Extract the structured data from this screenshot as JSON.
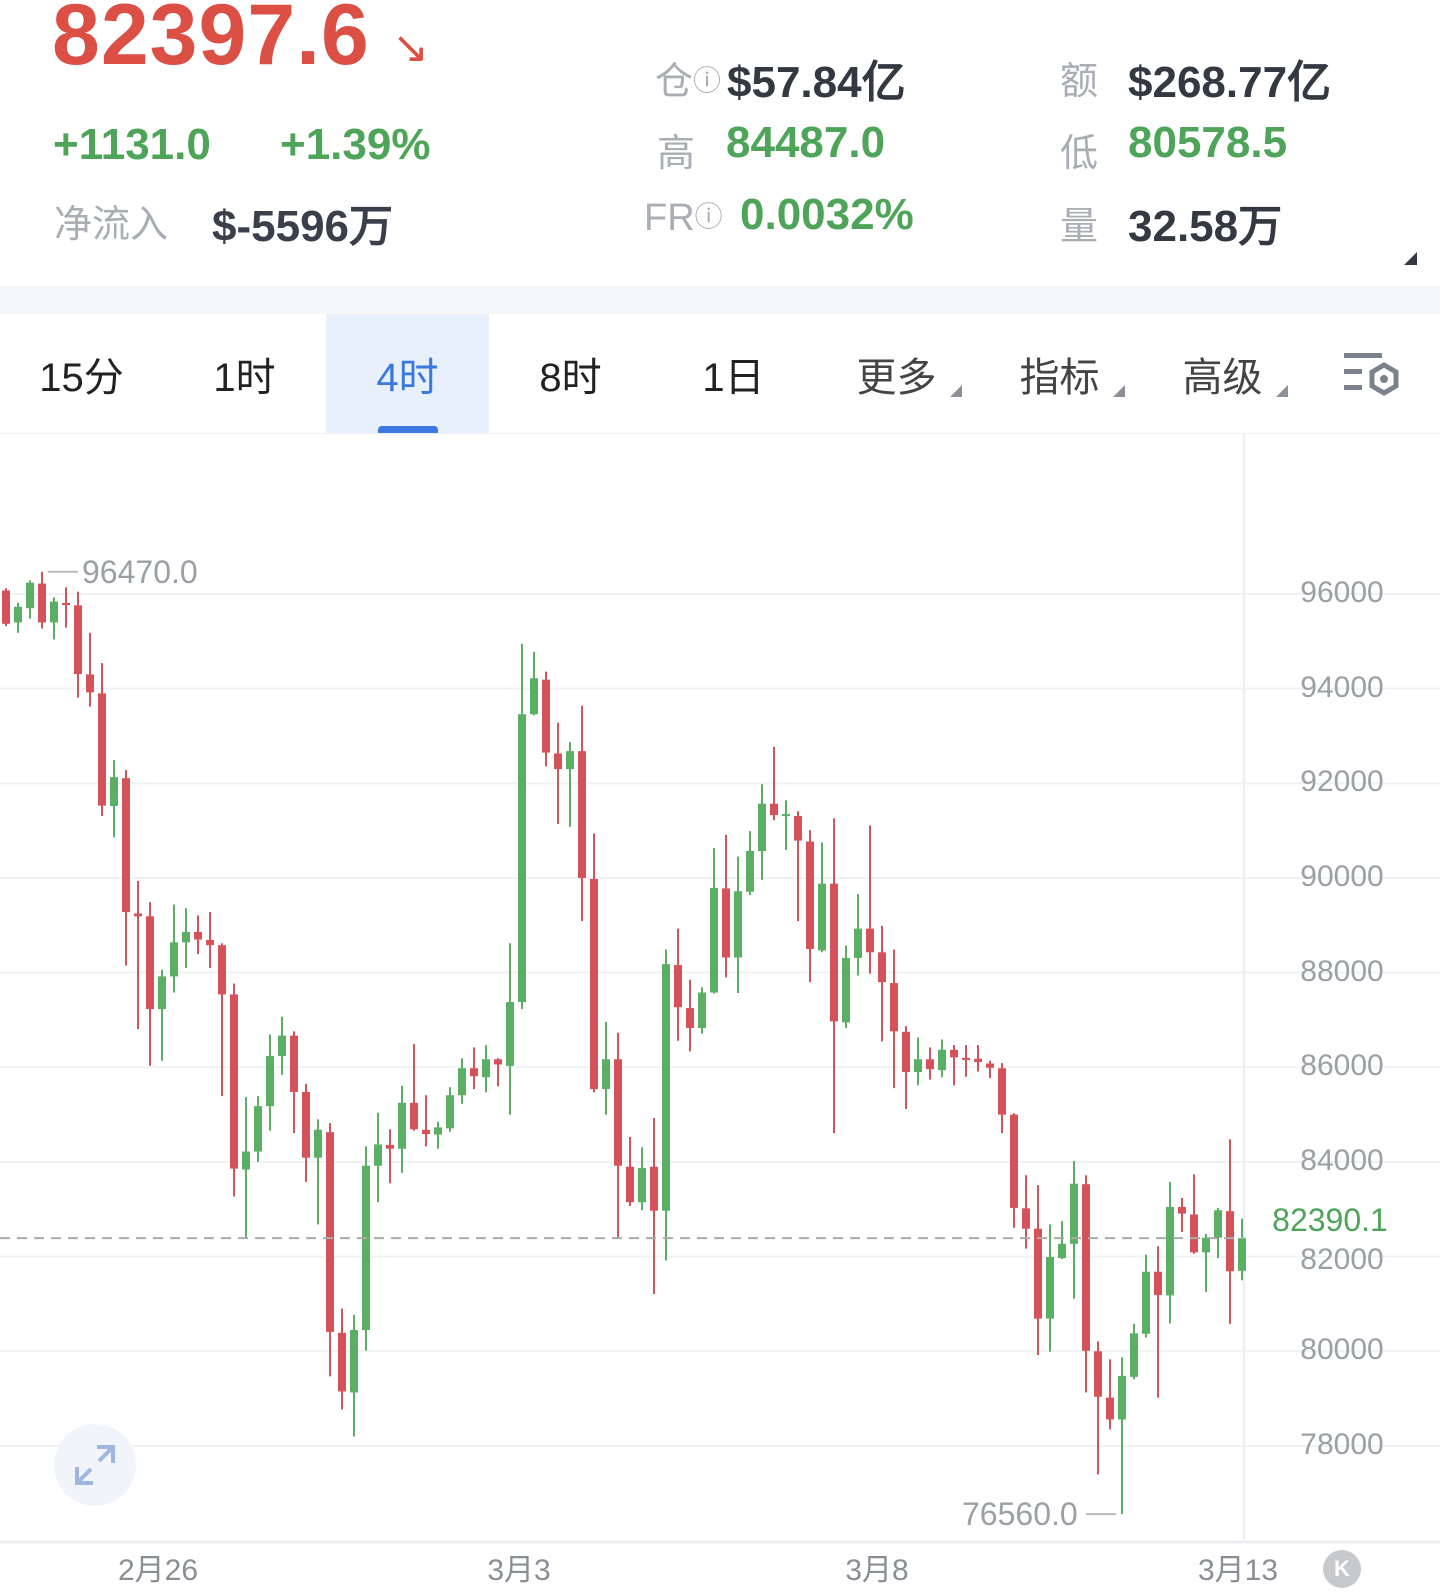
{
  "ticker": {
    "last_price": "82397.6",
    "trend_icon": "arrow-down-right-icon",
    "change": "+1131.0",
    "change_pct": "+1.39%",
    "net_inflow_label": "净流入",
    "net_inflow_value": "$-5596万"
  },
  "stats": {
    "open_interest_label": "仓",
    "open_interest_value": "$57.84亿",
    "turnover_label": "额",
    "turnover_value": "$268.77亿",
    "high_label": "高",
    "high_value": "84487.0",
    "low_label": "低",
    "low_value": "80578.5",
    "fr_label": "FR",
    "fr_value": "0.0032%",
    "volume_label": "量",
    "volume_value": "32.58万"
  },
  "tabs": [
    {
      "label": "15分",
      "active": false
    },
    {
      "label": "1时",
      "active": false
    },
    {
      "label": "4时",
      "active": true
    },
    {
      "label": "8时",
      "active": false
    },
    {
      "label": "1日",
      "active": false
    },
    {
      "label": "更多",
      "dropdown": true
    },
    {
      "label": "指标",
      "dropdown": true
    },
    {
      "label": "高级",
      "dropdown": true
    }
  ],
  "colors": {
    "up": "#5aaf64",
    "down": "#d4525a",
    "accent": "#3b78e0",
    "price_down": "#dc4f45"
  },
  "chart_data": {
    "type": "candlestick",
    "interval": "4时",
    "ylim": [
      76000,
      97500
    ],
    "yticks": [
      96000,
      94000,
      92000,
      90000,
      88000,
      86000,
      84000,
      82000,
      80000,
      78000
    ],
    "ytick_labels": [
      "96000",
      "94000",
      "92000",
      "90000",
      "88000",
      "86000",
      "84000",
      "82000",
      "80000",
      "78000"
    ],
    "xtick_labels": [
      "2月26",
      "3月3",
      "3月8",
      "3月13"
    ],
    "grid": true,
    "high_marker": "96470.0",
    "low_marker": "76560.0",
    "last_price_line": "82390.1",
    "ohlc_fields": [
      "open",
      "high",
      "low",
      "close"
    ],
    "candles": [
      [
        96075,
        96120,
        95320,
        95370
      ],
      [
        95400,
        95820,
        95180,
        95730
      ],
      [
        95700,
        96290,
        95480,
        96240
      ],
      [
        96220,
        96470,
        95270,
        95400
      ],
      [
        95400,
        95930,
        95040,
        95840
      ],
      [
        95810,
        96140,
        95290,
        95770
      ],
      [
        95760,
        96050,
        93810,
        94310
      ],
      [
        94300,
        95180,
        93620,
        93920
      ],
      [
        93900,
        94540,
        91310,
        91530
      ],
      [
        91520,
        92490,
        90860,
        92130
      ],
      [
        92110,
        92280,
        88150,
        89280
      ],
      [
        89250,
        89940,
        86810,
        89190
      ],
      [
        89190,
        89490,
        86030,
        87230
      ],
      [
        87230,
        88060,
        86140,
        87920
      ],
      [
        87920,
        89440,
        87580,
        88640
      ],
      [
        88640,
        89360,
        88100,
        88860
      ],
      [
        88860,
        89210,
        88390,
        88700
      ],
      [
        88690,
        89280,
        88100,
        88580
      ],
      [
        88580,
        88620,
        85390,
        87540
      ],
      [
        87540,
        87770,
        83270,
        83860
      ],
      [
        83840,
        85370,
        82400,
        84220
      ],
      [
        84220,
        85390,
        84000,
        85180
      ],
      [
        85180,
        86690,
        84660,
        86240
      ],
      [
        86240,
        87070,
        85840,
        86670
      ],
      [
        86670,
        86760,
        84610,
        85480
      ],
      [
        85480,
        85650,
        83580,
        84090
      ],
      [
        84090,
        84900,
        82680,
        84680
      ],
      [
        84630,
        84820,
        79470,
        80410
      ],
      [
        80390,
        80900,
        78770,
        79150
      ],
      [
        79130,
        80770,
        78200,
        80450
      ],
      [
        80450,
        84330,
        80010,
        83920
      ],
      [
        83920,
        85040,
        83150,
        84370
      ],
      [
        84360,
        84690,
        83550,
        84280
      ],
      [
        84280,
        85610,
        83770,
        85250
      ],
      [
        85250,
        86490,
        84660,
        84690
      ],
      [
        84680,
        85410,
        84330,
        84590
      ],
      [
        84580,
        84850,
        84280,
        84730
      ],
      [
        84710,
        85580,
        84640,
        85410
      ],
      [
        85410,
        86190,
        85230,
        85980
      ],
      [
        85980,
        86420,
        85540,
        85810
      ],
      [
        85790,
        86470,
        85470,
        86170
      ],
      [
        86170,
        86190,
        85600,
        86060
      ],
      [
        86030,
        88620,
        85000,
        87380
      ],
      [
        87380,
        94950,
        87230,
        93460
      ],
      [
        93460,
        94780,
        93440,
        94220
      ],
      [
        94190,
        94360,
        92360,
        92650
      ],
      [
        92630,
        93280,
        91140,
        92300
      ],
      [
        92300,
        92870,
        91080,
        92680
      ],
      [
        92680,
        93640,
        89090,
        90000
      ],
      [
        89980,
        90940,
        85470,
        85540
      ],
      [
        85540,
        86960,
        85000,
        86170
      ],
      [
        86170,
        86730,
        82390,
        83920
      ],
      [
        83900,
        84530,
        83070,
        83150
      ],
      [
        83150,
        84310,
        82980,
        83870
      ],
      [
        83900,
        84930,
        81210,
        82970
      ],
      [
        82970,
        88490,
        81920,
        88180
      ],
      [
        88160,
        88930,
        86560,
        87270
      ],
      [
        87250,
        87850,
        86340,
        86830
      ],
      [
        86830,
        87690,
        86710,
        87580
      ],
      [
        87580,
        90630,
        87560,
        89790
      ],
      [
        89780,
        90910,
        87900,
        88320
      ],
      [
        88320,
        90450,
        87570,
        89720
      ],
      [
        89710,
        90990,
        89640,
        90570
      ],
      [
        90570,
        91980,
        89960,
        91570
      ],
      [
        91570,
        92770,
        91220,
        91330
      ],
      [
        91330,
        91640,
        90590,
        91350
      ],
      [
        91310,
        91410,
        89090,
        90790
      ],
      [
        90770,
        91010,
        87800,
        88500
      ],
      [
        88470,
        90750,
        88430,
        89880
      ],
      [
        89880,
        91260,
        84610,
        86970
      ],
      [
        86950,
        88570,
        86830,
        88310
      ],
      [
        88310,
        89660,
        87940,
        88930
      ],
      [
        88930,
        91110,
        87980,
        88430
      ],
      [
        88430,
        88990,
        86550,
        87800
      ],
      [
        87780,
        88490,
        85560,
        86760
      ],
      [
        86750,
        86870,
        85120,
        85900
      ],
      [
        85900,
        86630,
        85620,
        86170
      ],
      [
        86170,
        86420,
        85740,
        85960
      ],
      [
        85940,
        86590,
        85790,
        86370
      ],
      [
        86370,
        86470,
        85620,
        86210
      ],
      [
        86200,
        86470,
        85800,
        86190
      ],
      [
        86180,
        86470,
        85910,
        86110
      ],
      [
        86080,
        86140,
        85770,
        85990
      ],
      [
        85980,
        86090,
        84610,
        85000
      ],
      [
        85000,
        85030,
        82610,
        83030
      ],
      [
        83020,
        83720,
        82170,
        82590
      ],
      [
        82590,
        83510,
        79920,
        80690
      ],
      [
        80690,
        82680,
        79990,
        81990
      ],
      [
        81970,
        82750,
        81950,
        82270
      ],
      [
        82270,
        84020,
        81110,
        83540
      ],
      [
        83530,
        83720,
        79130,
        80010
      ],
      [
        80000,
        80210,
        77400,
        79040
      ],
      [
        79020,
        79830,
        78350,
        78560
      ],
      [
        78560,
        79870,
        76560,
        79480
      ],
      [
        79460,
        80580,
        79410,
        80380
      ],
      [
        80370,
        82040,
        80290,
        81680
      ],
      [
        81680,
        82220,
        79020,
        81190
      ],
      [
        81180,
        83580,
        80590,
        83050
      ],
      [
        83050,
        83240,
        82520,
        82910
      ],
      [
        82890,
        83740,
        82060,
        82090
      ],
      [
        82090,
        82480,
        81250,
        82400
      ],
      [
        82400,
        83030,
        81970,
        82980
      ],
      [
        82960,
        84480,
        80580,
        81690
      ],
      [
        81700,
        82800,
        81500,
        82390.1
      ]
    ]
  }
}
